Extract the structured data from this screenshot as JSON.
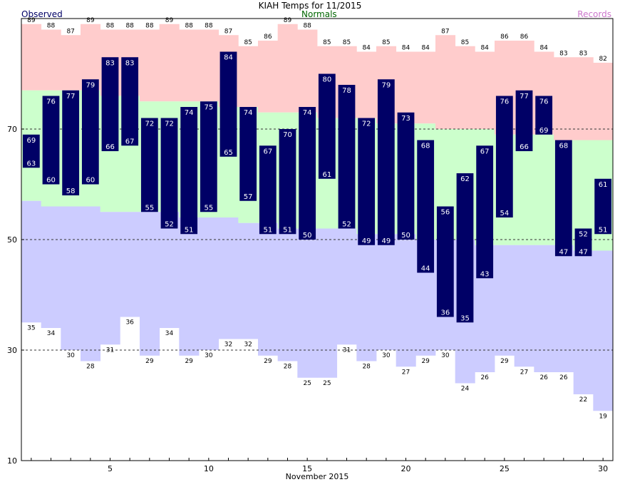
{
  "chart_data": {
    "type": "bar",
    "title": "KIAH Temps for 11/2015",
    "xlabel": "November 2015",
    "ylabel": "",
    "legend": {
      "observed": "Observed",
      "normals": "Normals",
      "records": "Records"
    },
    "colors": {
      "observed": "#000066",
      "observed_label": "#000066",
      "normals_label": "#006600",
      "records_label": "#cc77cc",
      "record_band": "#ffcccc",
      "normal_band": "#ccffcc",
      "low_band": "#ccccff",
      "bar_text": "#ffffff",
      "axis": "#000000"
    },
    "ylim": [
      10,
      90
    ],
    "yticks": [
      10,
      30,
      50,
      70
    ],
    "xticks": [
      5,
      10,
      15,
      20,
      25,
      30
    ],
    "grid": "dashed at 30, 50, 70",
    "days": [
      1,
      2,
      3,
      4,
      5,
      6,
      7,
      8,
      9,
      10,
      11,
      12,
      13,
      14,
      15,
      16,
      17,
      18,
      19,
      20,
      21,
      22,
      23,
      24,
      25,
      26,
      27,
      28,
      29,
      30
    ],
    "series": [
      {
        "name": "Observed High",
        "values": [
          69,
          76,
          77,
          79,
          83,
          83,
          72,
          72,
          74,
          75,
          84,
          74,
          67,
          70,
          74,
          80,
          78,
          72,
          79,
          73,
          68,
          56,
          62,
          67,
          76,
          77,
          76,
          68,
          52,
          61
        ]
      },
      {
        "name": "Observed Low",
        "values": [
          63,
          60,
          58,
          60,
          66,
          67,
          55,
          52,
          51,
          55,
          65,
          57,
          51,
          51,
          50,
          61,
          52,
          49,
          49,
          50,
          44,
          36,
          35,
          43,
          54,
          66,
          69,
          47,
          47,
          51
        ]
      },
      {
        "name": "Normal High",
        "values": [
          77,
          77,
          77,
          77,
          76,
          76,
          75,
          75,
          75,
          75,
          74,
          74,
          73,
          73,
          73,
          72,
          72,
          72,
          71,
          71,
          71,
          70,
          70,
          70,
          69,
          69,
          69,
          68,
          68,
          68
        ]
      },
      {
        "name": "Normal Low",
        "values": [
          57,
          56,
          56,
          56,
          55,
          55,
          55,
          55,
          54,
          54,
          54,
          53,
          53,
          52,
          52,
          52,
          52,
          51,
          51,
          51,
          50,
          50,
          50,
          49,
          49,
          49,
          49,
          49,
          48,
          48
        ]
      },
      {
        "name": "Record High",
        "values": [
          89,
          88,
          87,
          89,
          88,
          88,
          88,
          89,
          88,
          88,
          87,
          85,
          86,
          89,
          88,
          85,
          85,
          84,
          85,
          84,
          84,
          87,
          85,
          84,
          86,
          86,
          84,
          83,
          83,
          82
        ]
      },
      {
        "name": "Record Low",
        "values": [
          35,
          34,
          30,
          28,
          31,
          36,
          29,
          34,
          29,
          30,
          32,
          32,
          29,
          28,
          25,
          25,
          31,
          28,
          30,
          27,
          29,
          30,
          24,
          26,
          29,
          27,
          26,
          26,
          22,
          19
        ]
      }
    ]
  }
}
